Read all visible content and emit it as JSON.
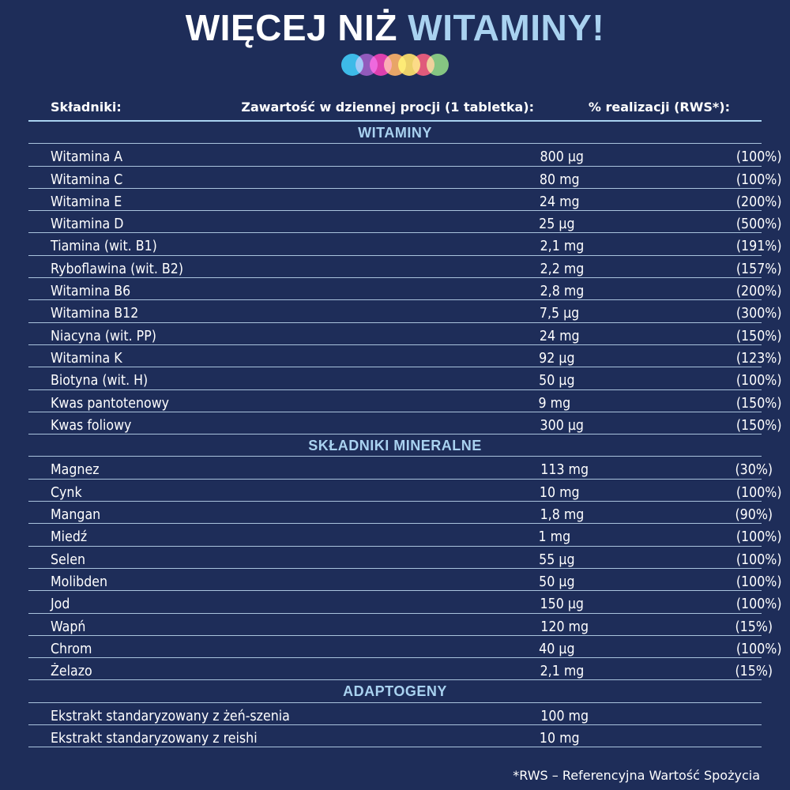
{
  "title_part1": "WIĘCEJ NIŻ ",
  "title_part2": "WITAMINY!",
  "dot_colors": [
    "#25b4e8",
    "#8a3aa0",
    "#e4188a",
    "#f29a16",
    "#f5d21a",
    "#e83a36",
    "#7bc242"
  ],
  "header": {
    "col1": "Składniki:",
    "col2": "Zawartość w dziennej procji (1 tabletka):",
    "col3": "% realizacji (RWS*):"
  },
  "rows": [
    {
      "type": "section",
      "label": "WITAMINY"
    },
    {
      "name": "Witamina A",
      "amount": "800 µg",
      "pct": "(100%)"
    },
    {
      "name": "Witamina C",
      "amount": "80 mg",
      "pct": "(100%)"
    },
    {
      "name": "Witamina E",
      "amount": "24 mg",
      "pct": "(200%)"
    },
    {
      "name": "Witamina D",
      "amount": "25 µg",
      "pct": "(500%)"
    },
    {
      "name": "Tiamina (wit. B1)",
      "amount": "2,1 mg",
      "pct": "(191%)"
    },
    {
      "name": "Ryboflawina (wit. B2)",
      "amount": "2,2 mg",
      "pct": "(157%)"
    },
    {
      "name": "Witamina B6",
      "amount": "2,8 mg",
      "pct": "(200%)"
    },
    {
      "name": "Witamina B12",
      "amount": "7,5 µg",
      "pct": "(300%)"
    },
    {
      "name": "Niacyna (wit. PP)",
      "amount": "24 mg",
      "pct": "(150%)"
    },
    {
      "name": "Witamina K",
      "amount": "92 µg",
      "pct": "(123%)"
    },
    {
      "name": "Biotyna (wit. H)",
      "amount": "50 µg",
      "pct": "(100%)"
    },
    {
      "name": "Kwas pantotenowy",
      "amount": "9 mg",
      "pct": "(150%)"
    },
    {
      "name": "Kwas foliowy",
      "amount": "300 µg",
      "pct": "(150%)"
    },
    {
      "type": "section",
      "label": "SKŁADNIKI  MINERALNE"
    },
    {
      "name": "Magnez",
      "amount": "113 mg",
      "pct": "(30%)"
    },
    {
      "name": "Cynk",
      "amount": "10 mg",
      "pct": "(100%)"
    },
    {
      "name": "Mangan",
      "amount": "1,8 mg",
      "pct": "(90%)"
    },
    {
      "name": "Miedź",
      "amount": "1 mg",
      "pct": "(100%)"
    },
    {
      "name": "Selen",
      "amount": "55 µg",
      "pct": "(100%)"
    },
    {
      "name": "Molibden",
      "amount": "50 µg",
      "pct": "(100%)"
    },
    {
      "name": "Jod",
      "amount": "150 µg",
      "pct": "(100%)"
    },
    {
      "name": "Wapń",
      "amount": "120 mg",
      "pct": "(15%)"
    },
    {
      "name": "Chrom",
      "amount": "40 µg",
      "pct": "(100%)"
    },
    {
      "name": "Żelazo",
      "amount": "2,1 mg",
      "pct": "(15%)"
    },
    {
      "type": "section",
      "label": "ADAPTOGENY"
    },
    {
      "name": "Ekstrakt standaryzowany z żeń-szenia",
      "amount": "100 mg",
      "pct": ""
    },
    {
      "name": "Ekstrakt standaryzowany z reishi",
      "amount": "10 mg",
      "pct": ""
    }
  ],
  "footnote": "*RWS – Referencyjna Wartość Spożycia"
}
